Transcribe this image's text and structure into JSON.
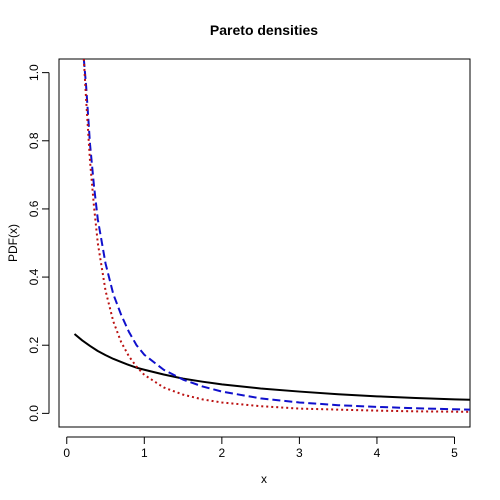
{
  "chart_data": {
    "type": "line",
    "title": "Pareto densities",
    "xlabel": "x",
    "ylabel": "PDF(x)",
    "xlim": [
      -0.1,
      5.2
    ],
    "ylim": [
      -0.04,
      1.04
    ],
    "x_ticks": [
      0,
      1,
      2,
      3,
      4,
      5
    ],
    "x_tick_labels": [
      "0",
      "1",
      "2",
      "3",
      "4",
      "5"
    ],
    "y_ticks": [
      0.0,
      0.2,
      0.4,
      0.6,
      0.8,
      1.0
    ],
    "y_tick_labels": [
      "0.0",
      "0.2",
      "0.4",
      "0.6",
      "0.8",
      "1.0"
    ],
    "grid": false,
    "legend": "none",
    "series": [
      {
        "color": "#000000",
        "style": "solid",
        "points": [
          [
            0.1,
            0.233
          ],
          [
            0.2,
            0.214
          ],
          [
            0.3,
            0.198
          ],
          [
            0.4,
            0.183
          ],
          [
            0.5,
            0.171
          ],
          [
            0.6,
            0.16
          ],
          [
            0.7,
            0.151
          ],
          [
            0.8,
            0.142
          ],
          [
            0.9,
            0.134
          ],
          [
            1.0,
            0.128
          ],
          [
            1.25,
            0.114
          ],
          [
            1.5,
            0.102
          ],
          [
            1.75,
            0.093
          ],
          [
            2.0,
            0.085
          ],
          [
            2.5,
            0.073
          ],
          [
            3.0,
            0.064
          ],
          [
            3.5,
            0.056
          ],
          [
            4.0,
            0.05
          ],
          [
            4.5,
            0.045
          ],
          [
            5.0,
            0.041
          ],
          [
            5.2,
            0.04
          ]
        ]
      },
      {
        "color": "#1010cc",
        "style": "dashed",
        "points": [
          [
            0.22,
            1.04
          ],
          [
            0.25,
            0.96
          ],
          [
            0.3,
            0.79
          ],
          [
            0.35,
            0.67
          ],
          [
            0.4,
            0.57
          ],
          [
            0.5,
            0.44
          ],
          [
            0.6,
            0.35
          ],
          [
            0.7,
            0.29
          ],
          [
            0.8,
            0.24
          ],
          [
            0.9,
            0.2
          ],
          [
            1.0,
            0.172
          ],
          [
            1.25,
            0.128
          ],
          [
            1.5,
            0.099
          ],
          [
            1.75,
            0.079
          ],
          [
            2.0,
            0.064
          ],
          [
            2.5,
            0.044
          ],
          [
            3.0,
            0.032
          ],
          [
            3.5,
            0.024
          ],
          [
            4.0,
            0.019
          ],
          [
            4.5,
            0.015
          ],
          [
            5.0,
            0.012
          ],
          [
            5.2,
            0.011
          ]
        ]
      },
      {
        "color": "#bb1111",
        "style": "dotted",
        "points": [
          [
            0.22,
            1.04
          ],
          [
            0.25,
            0.92
          ],
          [
            0.3,
            0.74
          ],
          [
            0.35,
            0.61
          ],
          [
            0.4,
            0.5
          ],
          [
            0.5,
            0.36
          ],
          [
            0.6,
            0.27
          ],
          [
            0.7,
            0.21
          ],
          [
            0.8,
            0.168
          ],
          [
            0.9,
            0.137
          ],
          [
            1.0,
            0.113
          ],
          [
            1.25,
            0.076
          ],
          [
            1.5,
            0.055
          ],
          [
            1.75,
            0.041
          ],
          [
            2.0,
            0.032
          ],
          [
            2.5,
            0.021
          ],
          [
            3.0,
            0.014
          ],
          [
            3.5,
            0.011
          ],
          [
            4.0,
            0.008
          ],
          [
            4.5,
            0.006
          ],
          [
            5.0,
            0.005
          ],
          [
            5.2,
            0.0045
          ]
        ]
      }
    ]
  }
}
